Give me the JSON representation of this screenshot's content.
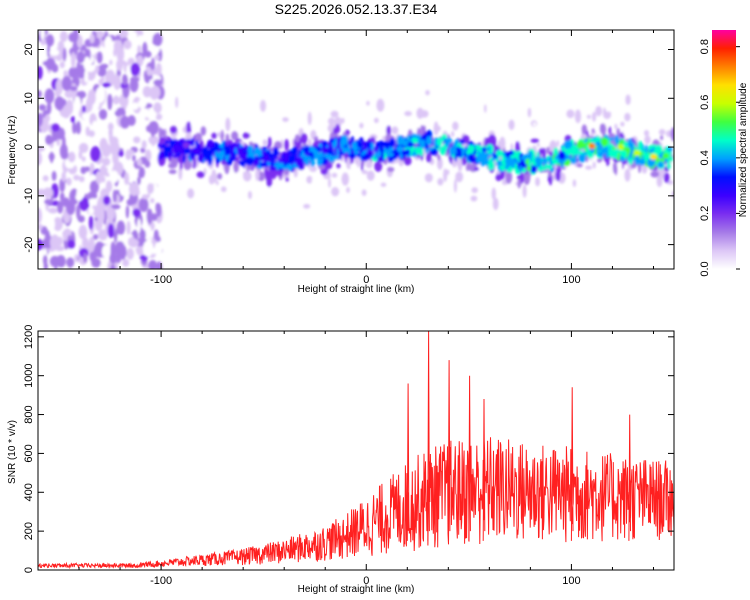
{
  "figure_title": "S225.2026.052.13.37.E34",
  "chart_data": [
    {
      "type": "heatmap",
      "title": "",
      "xlabel": "Height of straight line (km)",
      "ylabel": "Frequency (Hz)",
      "xlim": [
        -160,
        150
      ],
      "ylim": [
        -25,
        24
      ],
      "xticks": [
        -100,
        0,
        100
      ],
      "yticks": [
        -20,
        -10,
        0,
        10,
        20
      ],
      "colorbar": {
        "label": "Normalized spectral amplitude",
        "range": [
          0.0,
          0.86
        ],
        "ticks": [
          0.0,
          0.2,
          0.4,
          0.6,
          0.8
        ],
        "colormap": [
          "#ffffff",
          "#dcc6f6",
          "#a57ae8",
          "#7a2ef0",
          "#3b00ff",
          "#0010ff",
          "#00a0ff",
          "#00ffc8",
          "#40ff40",
          "#c8ff00",
          "#ffe000",
          "#ff8000",
          "#ff2000",
          "#ff00a0"
        ]
      },
      "centerline": [
        [
          -100,
          0
        ],
        [
          -80,
          -1
        ],
        [
          -60,
          -1.5
        ],
        [
          -40,
          -3
        ],
        [
          -20,
          -1
        ],
        [
          -10,
          0
        ],
        [
          0,
          -0.5
        ],
        [
          10,
          -1
        ],
        [
          20,
          0
        ],
        [
          30,
          1
        ],
        [
          40,
          0
        ],
        [
          50,
          -1
        ],
        [
          60,
          -2
        ],
        [
          70,
          -3
        ],
        [
          80,
          -3
        ],
        [
          90,
          -3
        ],
        [
          100,
          -1
        ],
        [
          110,
          0
        ],
        [
          120,
          0
        ],
        [
          130,
          -1
        ],
        [
          140,
          -2
        ],
        [
          150,
          -2
        ]
      ],
      "noise_region_x": [
        -160,
        -100
      ]
    },
    {
      "type": "line",
      "title": "",
      "xlabel": "Height of straight line (km)",
      "ylabel": "SNR (10 * v/v)",
      "xlim": [
        -160,
        150
      ],
      "ylim": [
        0,
        1230
      ],
      "xticks": [
        -100,
        0,
        100
      ],
      "yticks": [
        0,
        200,
        400,
        600,
        800,
        1000,
        1200
      ],
      "series": [
        {
          "name": "SNR",
          "color": "#ff2020",
          "envelope": [
            [
              -160,
              25
            ],
            [
              -120,
              25
            ],
            [
              -100,
              50
            ],
            [
              -80,
              80
            ],
            [
              -60,
              110
            ],
            [
              -40,
              160
            ],
            [
              -20,
              230
            ],
            [
              -10,
              290
            ],
            [
              0,
              380
            ],
            [
              10,
              470
            ],
            [
              20,
              560
            ],
            [
              30,
              630
            ],
            [
              40,
              670
            ],
            [
              60,
              700
            ],
            [
              80,
              660
            ],
            [
              100,
              640
            ],
            [
              120,
              600
            ],
            [
              150,
              560
            ]
          ],
          "baseline_low": [
            [
              -160,
              10
            ],
            [
              -100,
              15
            ],
            [
              -40,
              30
            ],
            [
              0,
              60
            ],
            [
              20,
              90
            ],
            [
              40,
              110
            ],
            [
              60,
              120
            ],
            [
              100,
              130
            ],
            [
              150,
              150
            ]
          ],
          "peaks": [
            [
              20,
              960
            ],
            [
              30,
              1230
            ],
            [
              40,
              1080
            ],
            [
              50,
              1000
            ],
            [
              57,
              880
            ],
            [
              100,
              940
            ],
            [
              128,
              800
            ],
            [
              150,
              700
            ]
          ]
        }
      ]
    }
  ]
}
